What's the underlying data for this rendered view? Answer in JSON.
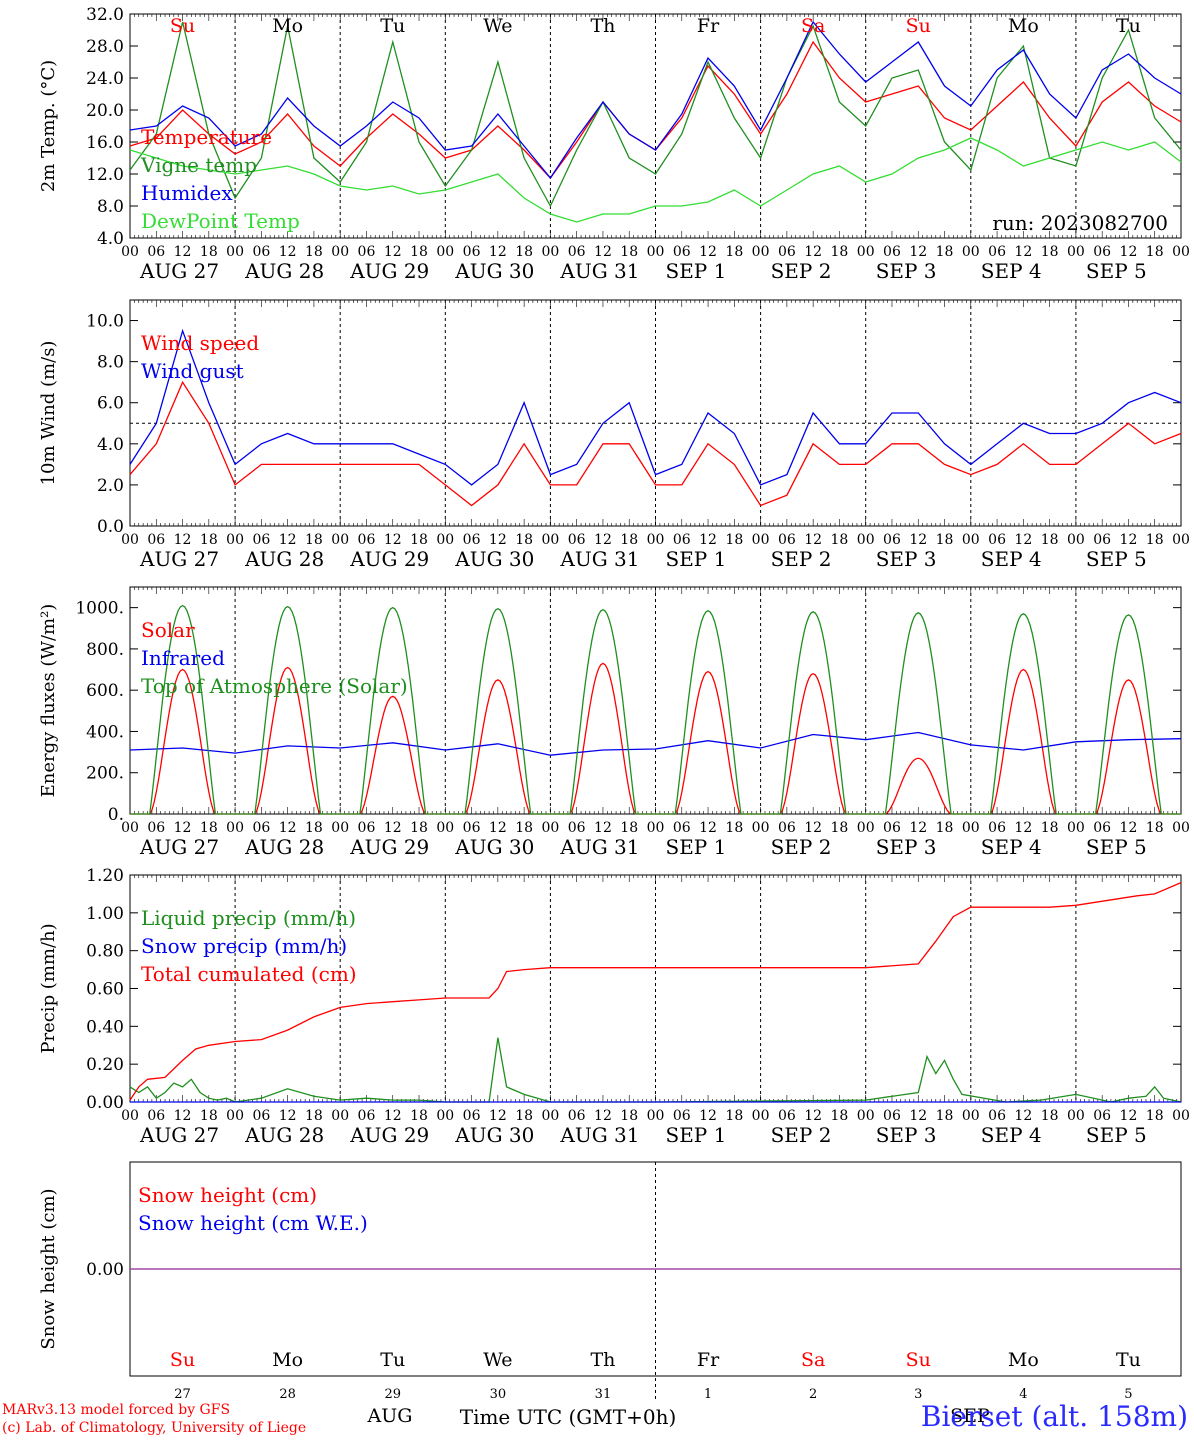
{
  "run_label": "run: 2023082700",
  "station": "Bierset (alt. 158m)",
  "footer": {
    "model": "MARv3.13 model forced by GFS",
    "credit": "(c) Lab. of Climatology, University of Liege",
    "month_left": "AUG",
    "month_right": "SEP",
    "time_label": "Time UTC (GMT+0h)"
  },
  "days": {
    "weekdays": [
      "Su",
      "Mo",
      "Tu",
      "We",
      "Th",
      "Fr",
      "Sa",
      "Su",
      "Mo",
      "Tu"
    ],
    "weekend": [
      true,
      false,
      false,
      false,
      false,
      false,
      true,
      true,
      false,
      false
    ],
    "dates": [
      "AUG 27",
      "AUG 28",
      "AUG 29",
      "AUG 30",
      "AUG 31",
      "SEP 1",
      "SEP 2",
      "SEP 3",
      "SEP 4",
      "SEP 5"
    ],
    "daynums": [
      "27",
      "28",
      "29",
      "30",
      "31",
      "1",
      "2",
      "3",
      "4",
      "5"
    ],
    "hour_ticks": [
      "00",
      "06",
      "12",
      "18"
    ],
    "end_tick": "00"
  },
  "colors": {
    "red": "#ff0000",
    "green": "#1f8f1f",
    "blue": "#0000ee",
    "lightgreen": "#33dd33",
    "purple": "#a040a0",
    "weekend": "#ff0000"
  },
  "chart_data": [
    {
      "id": "temp",
      "type": "line",
      "ylabel": "2m Temp. (°C)",
      "ylim": [
        4,
        32
      ],
      "yticks": [
        "4.0",
        "8.0",
        "12.0",
        "16.0",
        "20.0",
        "24.0",
        "28.0",
        "32.0"
      ],
      "grid": "vertical dotted at day boundaries",
      "legend": "top-left",
      "x_unit": "hour of run",
      "series": [
        {
          "name": "Temperature",
          "color": "red",
          "x": [
            0,
            6,
            12,
            18,
            24,
            30,
            36,
            42,
            48,
            54,
            60,
            66,
            72,
            78,
            84,
            90,
            96,
            102,
            108,
            114,
            120,
            126,
            132,
            138,
            144,
            150,
            156,
            162,
            168,
            174,
            180,
            186,
            192,
            198,
            204,
            210,
            216,
            222,
            228,
            234,
            240
          ],
          "y": [
            15.5,
            16.5,
            20,
            17,
            14.5,
            16,
            19.5,
            15.5,
            13,
            16.5,
            19.5,
            17,
            14,
            15,
            18,
            15,
            11.5,
            16,
            21,
            17,
            15,
            19,
            25.5,
            22,
            17,
            22,
            28.5,
            24,
            21,
            22,
            23,
            19,
            17.5,
            20.5,
            23.5,
            19,
            15.5,
            21,
            23.5,
            20.5,
            18.5
          ]
        },
        {
          "name": "Vigne temp",
          "color": "green",
          "x": [
            0,
            6,
            12,
            18,
            24,
            30,
            36,
            42,
            48,
            54,
            60,
            66,
            72,
            78,
            84,
            90,
            96,
            102,
            108,
            114,
            120,
            126,
            132,
            138,
            144,
            150,
            156,
            162,
            168,
            174,
            180,
            186,
            192,
            198,
            204,
            210,
            216,
            222,
            228,
            234,
            240
          ],
          "y": [
            12.5,
            17,
            31,
            17,
            9,
            14,
            30.5,
            14,
            11,
            16,
            28.5,
            16,
            10.5,
            15,
            26,
            14,
            8,
            15,
            21,
            14,
            12,
            17,
            26,
            19,
            14,
            24,
            30.5,
            21,
            18,
            24,
            25,
            16,
            12.5,
            24,
            28,
            14,
            13,
            24,
            30,
            19,
            15
          ]
        },
        {
          "name": "Humidex",
          "color": "blue",
          "x": [
            0,
            6,
            12,
            18,
            24,
            30,
            36,
            42,
            48,
            54,
            60,
            66,
            72,
            78,
            84,
            90,
            96,
            102,
            108,
            114,
            120,
            126,
            132,
            138,
            144,
            150,
            156,
            162,
            168,
            174,
            180,
            186,
            192,
            198,
            204,
            210,
            216,
            222,
            228,
            234,
            240
          ],
          "y": [
            17.5,
            18,
            20.5,
            19,
            15.5,
            17,
            21.5,
            18,
            15.5,
            18,
            21,
            19,
            15,
            15.5,
            19.5,
            15.5,
            11.5,
            16.5,
            21,
            17,
            15,
            19.5,
            26.5,
            23,
            17.5,
            24,
            31,
            27,
            23.5,
            26,
            28.5,
            23,
            20.5,
            25,
            27.5,
            22,
            19,
            25,
            27,
            24,
            22
          ]
        },
        {
          "name": "DewPoint Temp",
          "color": "lightgreen",
          "x": [
            0,
            6,
            12,
            18,
            24,
            30,
            36,
            42,
            48,
            54,
            60,
            66,
            72,
            78,
            84,
            90,
            96,
            102,
            108,
            114,
            120,
            126,
            132,
            138,
            144,
            150,
            156,
            162,
            168,
            174,
            180,
            186,
            192,
            198,
            204,
            210,
            216,
            222,
            228,
            234,
            240
          ],
          "y": [
            15,
            14,
            13,
            12.5,
            12,
            12.5,
            13,
            12,
            10.5,
            10,
            10.5,
            9.5,
            10,
            11,
            12,
            9,
            7,
            6,
            7,
            7,
            8,
            8,
            8.5,
            10,
            8,
            10,
            12,
            13,
            11,
            12,
            14,
            15,
            16.5,
            15,
            13,
            14,
            15,
            16,
            15,
            16,
            13.5
          ]
        }
      ]
    },
    {
      "id": "wind",
      "type": "line",
      "ylabel": "10m Wind (m/s)",
      "ylim": [
        0,
        11
      ],
      "yticks": [
        "0.0",
        "2.0",
        "4.0",
        "6.0",
        "8.0",
        "10.0"
      ],
      "reference_line": 5,
      "legend": "top-left",
      "series": [
        {
          "name": "Wind speed",
          "color": "red",
          "x": [
            0,
            6,
            12,
            18,
            24,
            30,
            36,
            42,
            48,
            54,
            60,
            66,
            72,
            78,
            84,
            90,
            96,
            102,
            108,
            114,
            120,
            126,
            132,
            138,
            144,
            150,
            156,
            162,
            168,
            174,
            180,
            186,
            192,
            198,
            204,
            210,
            216,
            222,
            228,
            234,
            240
          ],
          "y": [
            2.5,
            4,
            7,
            5,
            2,
            3,
            3,
            3,
            3,
            3,
            3,
            3,
            2,
            1,
            2,
            4,
            2,
            2,
            4,
            4,
            2,
            2,
            4,
            3,
            1,
            1.5,
            4,
            3,
            3,
            4,
            4,
            3,
            2.5,
            3,
            4,
            3,
            3,
            4,
            5,
            4,
            4.5
          ]
        },
        {
          "name": "Wind gust",
          "color": "blue",
          "x": [
            0,
            6,
            12,
            18,
            24,
            30,
            36,
            42,
            48,
            54,
            60,
            66,
            72,
            78,
            84,
            90,
            96,
            102,
            108,
            114,
            120,
            126,
            132,
            138,
            144,
            150,
            156,
            162,
            168,
            174,
            180,
            186,
            192,
            198,
            204,
            210,
            216,
            222,
            228,
            234,
            240
          ],
          "y": [
            3,
            5,
            9.5,
            6,
            3,
            4,
            4.5,
            4,
            4,
            4,
            4,
            3.5,
            3,
            2,
            3,
            6,
            2.5,
            3,
            5,
            6,
            2.5,
            3,
            5.5,
            4.5,
            2,
            2.5,
            5.5,
            4,
            4,
            5.5,
            5.5,
            4,
            3,
            4,
            5,
            4.5,
            4.5,
            5,
            6,
            6.5,
            6
          ]
        }
      ]
    },
    {
      "id": "energy",
      "type": "line",
      "ylabel": "Energy fluxes (W/m²)",
      "ylim": [
        0,
        1100
      ],
      "yticks": [
        "0.",
        "200.",
        "400.",
        "600.",
        "800.",
        "1000."
      ],
      "legend": "top-left",
      "series": [
        {
          "name": "Solar",
          "color": "red",
          "day_peaks": [
            700,
            710,
            570,
            650,
            730,
            690,
            680,
            270,
            700,
            650
          ]
        },
        {
          "name": "Infrared",
          "color": "blue",
          "x": [
            0,
            12,
            24,
            36,
            48,
            60,
            72,
            84,
            96,
            108,
            120,
            132,
            144,
            156,
            168,
            180,
            192,
            204,
            216,
            228,
            240
          ],
          "y": [
            310,
            320,
            295,
            330,
            320,
            345,
            310,
            340,
            285,
            310,
            315,
            355,
            320,
            385,
            360,
            395,
            335,
            310,
            350,
            360,
            365
          ]
        },
        {
          "name": "Top of Atmosphere (Solar)",
          "color": "green",
          "day_peaks": [
            1010,
            1005,
            1000,
            995,
            990,
            985,
            980,
            975,
            970,
            965
          ]
        }
      ]
    },
    {
      "id": "precip",
      "type": "line",
      "ylabel": "Precip (mm/h)",
      "ylim": [
        0,
        1.2
      ],
      "yticks": [
        "0.00",
        "0.20",
        "0.40",
        "0.60",
        "0.80",
        "1.00",
        "1.20"
      ],
      "legend": "top-left",
      "series": [
        {
          "name": "Liquid precip (mm/h)",
          "color": "green",
          "x": [
            0,
            2,
            4,
            6,
            8,
            10,
            12,
            14,
            16,
            18,
            20,
            22,
            24,
            30,
            36,
            42,
            48,
            54,
            60,
            66,
            72,
            78,
            82,
            84,
            86,
            90,
            96,
            120,
            168,
            180,
            182,
            184,
            186,
            188,
            190,
            200,
            208,
            216,
            224,
            228,
            232,
            234,
            236,
            240
          ],
          "y": [
            0.08,
            0.05,
            0.08,
            0.02,
            0.05,
            0.1,
            0.08,
            0.12,
            0.05,
            0.02,
            0.01,
            0.02,
            0,
            0.02,
            0.07,
            0.03,
            0.01,
            0.02,
            0.01,
            0.01,
            0,
            0,
            0,
            0.34,
            0.08,
            0.04,
            0,
            0,
            0.01,
            0.05,
            0.24,
            0.15,
            0.22,
            0.12,
            0.04,
            0,
            0.01,
            0.04,
            0,
            0.02,
            0.03,
            0.08,
            0.02,
            0
          ]
        },
        {
          "name": "Snow precip (mm/h)",
          "color": "blue",
          "x": [
            0,
            240
          ],
          "y": [
            0,
            0
          ]
        },
        {
          "name": "Total cumulated (cm)",
          "color": "red",
          "x": [
            0,
            2,
            4,
            8,
            12,
            15,
            18,
            24,
            30,
            36,
            42,
            48,
            54,
            60,
            66,
            72,
            78,
            82,
            84,
            86,
            90,
            96,
            120,
            168,
            180,
            184,
            188,
            192,
            210,
            216,
            230,
            234,
            240
          ],
          "y": [
            0.01,
            0.08,
            0.12,
            0.13,
            0.22,
            0.28,
            0.3,
            0.32,
            0.33,
            0.38,
            0.45,
            0.5,
            0.52,
            0.53,
            0.54,
            0.55,
            0.55,
            0.55,
            0.6,
            0.69,
            0.7,
            0.71,
            0.71,
            0.71,
            0.73,
            0.85,
            0.98,
            1.03,
            1.03,
            1.04,
            1.09,
            1.1,
            1.16
          ]
        }
      ]
    },
    {
      "id": "snow",
      "type": "line",
      "ylabel": "Snow height (cm)",
      "yticks": [
        "0.00"
      ],
      "ylim": [
        -1,
        1
      ],
      "legend": "top-left",
      "series": [
        {
          "name": "Snow height (cm)",
          "color": "red",
          "x": [
            0,
            240
          ],
          "y": [
            0,
            0
          ]
        },
        {
          "name": "Snow height (cm W.E.)",
          "color": "blue",
          "x": [
            0,
            240
          ],
          "y": [
            0,
            0
          ]
        }
      ]
    }
  ]
}
